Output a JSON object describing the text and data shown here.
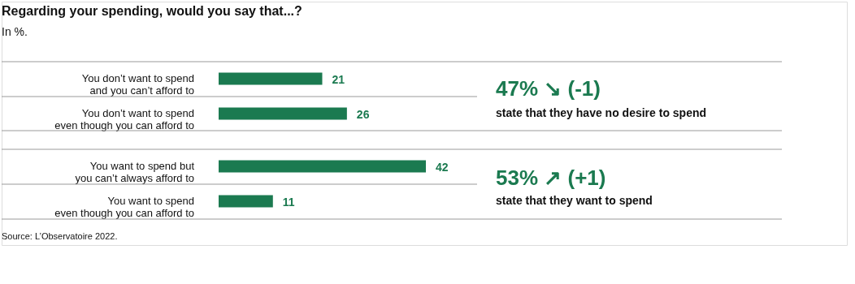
{
  "chart_data": {
    "type": "bar",
    "orientation": "horizontal",
    "title": "Regarding your spending, would you say that...?",
    "subtitle": "In %.",
    "categories": [
      "You don’t want to spend\nand you can’t afford to",
      "You don’t want to spend\neven though you can afford to",
      "You want to spend but\nyou can’t always afford to",
      "You want to spend\neven though you can afford to"
    ],
    "values": [
      21,
      26,
      42,
      11
    ],
    "color": "#1b7a50",
    "data_labels": true,
    "annotations": [
      "47% ↘ (-1)",
      "state that they have no desire to spend",
      "53% ↗ (+1)",
      "state that they want to spend",
      "Source: L’Observatoire 2022."
    ]
  }
}
